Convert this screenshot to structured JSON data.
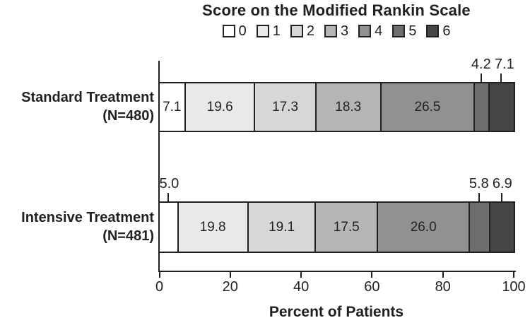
{
  "chart_data": {
    "type": "bar",
    "orientation": "horizontal",
    "stacked": true,
    "title": "Score on the Modified Rankin Scale",
    "xlabel": "Percent of Patients",
    "xlim": [
      0,
      100
    ],
    "x_ticks": [
      0,
      20,
      40,
      60,
      80,
      100
    ],
    "grid": false,
    "legend_position": "top",
    "legend_labels": [
      "0",
      "1",
      "2",
      "3",
      "4",
      "5",
      "6"
    ],
    "colors": [
      "#ffffff",
      "#e9e9e9",
      "#d7d7d7",
      "#b5b5b5",
      "#919191",
      "#6d6d6d",
      "#464646"
    ],
    "rows": [
      {
        "label": "Standard Treatment",
        "sublabel": "(N=480)",
        "values": [
          7.1,
          19.6,
          17.3,
          18.3,
          26.5,
          4.2,
          7.1
        ],
        "value_labels": [
          "7.1",
          "19.6",
          "17.3",
          "18.3",
          "26.5",
          "4.2",
          "7.1"
        ],
        "inside_label_indices": [
          0,
          1,
          2,
          3,
          4
        ],
        "outside_label_indices": [
          5,
          6
        ]
      },
      {
        "label": "Intensive Treatment",
        "sublabel": "(N=481)",
        "values": [
          5.0,
          19.8,
          19.1,
          17.5,
          26.0,
          5.8,
          6.9
        ],
        "value_labels": [
          "5.0",
          "19.8",
          "19.1",
          "17.5",
          "26.0",
          "5.8",
          "6.9"
        ],
        "inside_label_indices": [
          1,
          2,
          3,
          4
        ],
        "outside_label_indices": [
          0,
          5,
          6
        ]
      }
    ]
  }
}
